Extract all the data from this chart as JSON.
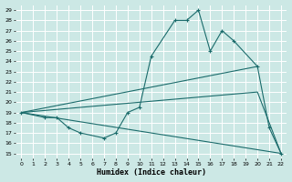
{
  "bg_color": "#cce8e5",
  "line_color": "#1a6b6b",
  "grid_color": "#ffffff",
  "xlabel": "Humidex (Indice chaleur)",
  "xlim": [
    -0.5,
    22.5
  ],
  "ylim": [
    14.5,
    29.5
  ],
  "xticks": [
    0,
    1,
    2,
    3,
    4,
    5,
    6,
    7,
    8,
    9,
    10,
    11,
    12,
    13,
    14,
    15,
    16,
    17,
    18,
    19,
    20,
    21,
    22
  ],
  "yticks": [
    15,
    16,
    17,
    18,
    19,
    20,
    21,
    22,
    23,
    24,
    25,
    26,
    27,
    28,
    29
  ],
  "line1_x": [
    0,
    2,
    3,
    4,
    5,
    7,
    8,
    9,
    10,
    11,
    13,
    14,
    15,
    16,
    17,
    18,
    20,
    21,
    22
  ],
  "line1_y": [
    19,
    18.5,
    18.5,
    17.5,
    17.0,
    16.5,
    17.0,
    19.0,
    19.5,
    24.5,
    28.0,
    28.0,
    29.0,
    25.0,
    27.0,
    26.0,
    23.5,
    17.5,
    15.0
  ],
  "line2_x": [
    0,
    20
  ],
  "line2_y": [
    19,
    23.5
  ],
  "line3_x": [
    0,
    20,
    22
  ],
  "line3_y": [
    19,
    21.0,
    15.0
  ],
  "line4_x": [
    0,
    22
  ],
  "line4_y": [
    19,
    15.0
  ]
}
